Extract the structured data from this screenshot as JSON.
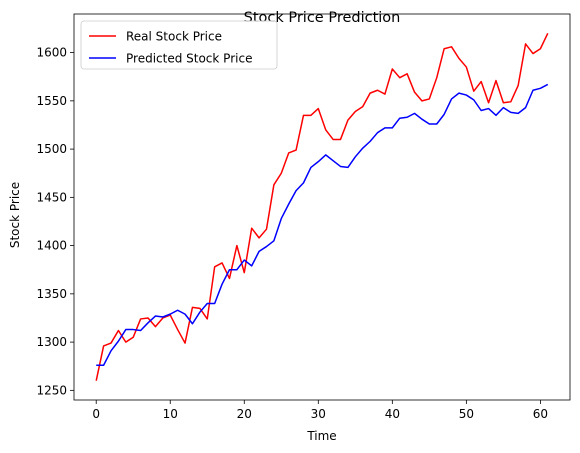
{
  "chart_data": {
    "type": "line",
    "title": "Stock Price Prediction",
    "xlabel": "Time",
    "ylabel": "Stock Price",
    "xlim": [
      -3,
      64
    ],
    "ylim": [
      1240,
      1640
    ],
    "xticks": [
      0,
      10,
      20,
      30,
      40,
      50,
      60
    ],
    "yticks": [
      1250,
      1300,
      1350,
      1400,
      1450,
      1500,
      1550,
      1600
    ],
    "grid": false,
    "legend_position": "top-left",
    "series": [
      {
        "name": "Real Stock Price",
        "color": "#ff0000",
        "values": [
          1260,
          1296,
          1299,
          1312,
          1300,
          1305,
          1324,
          1325,
          1316,
          1325,
          1328,
          1313,
          1299,
          1336,
          1335,
          1324,
          1378,
          1382,
          1366,
          1400,
          1372,
          1418,
          1408,
          1417,
          1463,
          1475,
          1496,
          1499,
          1535,
          1535,
          1542,
          1520,
          1510,
          1510,
          1530,
          1539,
          1544,
          1558,
          1561,
          1557,
          1583,
          1574,
          1578,
          1559,
          1550,
          1552,
          1574,
          1604,
          1606,
          1594,
          1585,
          1560,
          1570,
          1548,
          1571,
          1548,
          1549,
          1566,
          1609,
          1599,
          1604,
          1620
        ]
      },
      {
        "name": "Predicted Stock Price",
        "color": "#0000ff",
        "values": [
          1276,
          1276,
          1291,
          1301,
          1313,
          1313,
          1312,
          1320,
          1327,
          1326,
          1329,
          1333,
          1329,
          1319,
          1331,
          1340,
          1340,
          1360,
          1375,
          1375,
          1385,
          1379,
          1394,
          1399,
          1405,
          1428,
          1443,
          1457,
          1465,
          1481,
          1487,
          1494,
          1488,
          1482,
          1481,
          1492,
          1501,
          1508,
          1517,
          1522,
          1522,
          1532,
          1533,
          1537,
          1531,
          1526,
          1526,
          1536,
          1552,
          1558,
          1556,
          1551,
          1540,
          1542,
          1535,
          1543,
          1538,
          1537,
          1543,
          1561,
          1563,
          1567
        ]
      }
    ]
  }
}
